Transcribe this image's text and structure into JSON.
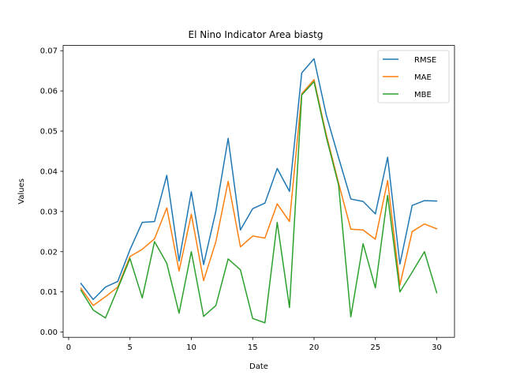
{
  "chart_data": {
    "type": "line",
    "title": "El Nino Indicator Area biastg",
    "xlabel": "Date",
    "ylabel": "Values",
    "xlim": [
      -0.45,
      31.45
    ],
    "ylim": [
      -0.0013,
      0.0713
    ],
    "x_ticks": [
      0,
      5,
      10,
      15,
      20,
      25,
      30
    ],
    "x_tick_labels": [
      "0",
      "5",
      "10",
      "15",
      "20",
      "25",
      "30"
    ],
    "y_ticks": [
      0.0,
      0.01,
      0.02,
      0.03,
      0.04,
      0.05,
      0.06,
      0.07
    ],
    "y_tick_labels": [
      "0.00",
      "0.01",
      "0.02",
      "0.03",
      "0.04",
      "0.05",
      "0.06",
      "0.07"
    ],
    "grid": false,
    "legend_position": "upper-right",
    "x": [
      1,
      2,
      3,
      4,
      5,
      6,
      7,
      8,
      9,
      10,
      11,
      12,
      13,
      14,
      15,
      16,
      17,
      18,
      19,
      20,
      21,
      22,
      23,
      24,
      25,
      26,
      27,
      28,
      29,
      30
    ],
    "series": [
      {
        "name": "RMSE",
        "color": "#1f77b4",
        "values": [
          0.0121,
          0.0081,
          0.0112,
          0.0126,
          0.0205,
          0.0273,
          0.0275,
          0.039,
          0.0177,
          0.0349,
          0.0168,
          0.0301,
          0.0482,
          0.0254,
          0.0307,
          0.0321,
          0.0407,
          0.035,
          0.0645,
          0.068,
          0.054,
          0.0434,
          0.0331,
          0.0325,
          0.0294,
          0.0435,
          0.0169,
          0.0315,
          0.0327,
          0.0326
        ]
      },
      {
        "name": "MAE",
        "color": "#ff7f0e",
        "values": [
          0.0109,
          0.0066,
          0.0088,
          0.0112,
          0.0188,
          0.0206,
          0.0232,
          0.0309,
          0.0152,
          0.0293,
          0.0128,
          0.0225,
          0.0375,
          0.0212,
          0.0239,
          0.0234,
          0.0319,
          0.0275,
          0.0593,
          0.0628,
          0.0491,
          0.0371,
          0.0256,
          0.0254,
          0.0231,
          0.0377,
          0.0117,
          0.025,
          0.0269,
          0.0257
        ]
      },
      {
        "name": "MBE",
        "color": "#2ca02c",
        "values": [
          0.0104,
          0.0055,
          0.0035,
          0.0108,
          0.0183,
          0.0085,
          0.0225,
          0.0171,
          0.0047,
          0.02,
          0.0039,
          0.0066,
          0.0182,
          0.0155,
          0.0034,
          0.0023,
          0.0273,
          0.0061,
          0.059,
          0.0623,
          0.0485,
          0.0366,
          0.0038,
          0.022,
          0.011,
          0.034,
          0.01,
          0.0149,
          0.02,
          0.0098
        ]
      }
    ]
  }
}
